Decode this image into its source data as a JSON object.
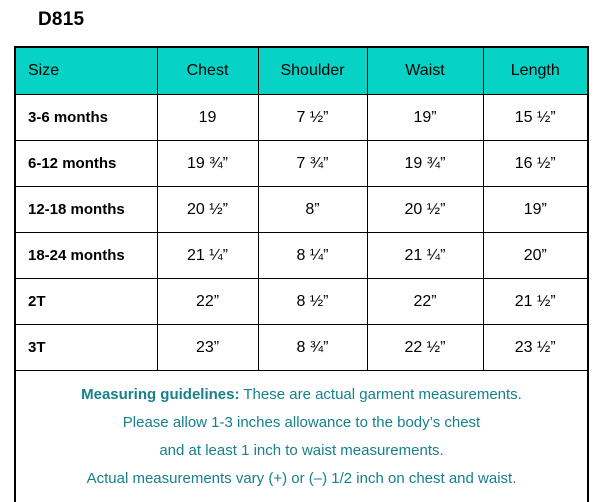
{
  "title": "D815",
  "colors": {
    "header_bg": "#06D2C6",
    "note_text": "#17808C",
    "border": "#000000",
    "text": "#000000"
  },
  "table": {
    "headers": [
      "Size",
      "Chest",
      "Shoulder",
      "Waist",
      "Length"
    ],
    "rows": [
      {
        "size": "3-6 months",
        "chest": "19",
        "shoulder": "7 ½”",
        "waist": "19”",
        "length": "15 ½”"
      },
      {
        "size": "6-12 months",
        "chest": "19 ¾”",
        "shoulder": "7 ¾”",
        "waist": "19 ¾”",
        "length": "16 ½”"
      },
      {
        "size": "12-18 months",
        "chest": "20 ½”",
        "shoulder": "8”",
        "waist": "20 ½”",
        "length": "19”"
      },
      {
        "size": "18-24 months",
        "chest": "21 ¼”",
        "shoulder": "8 ¼”",
        "waist": "21 ¼”",
        "length": "20”"
      },
      {
        "size": "2T",
        "chest": "22”",
        "shoulder": "8 ½”",
        "waist": "22”",
        "length": "21 ½”"
      },
      {
        "size": "3T",
        "chest": "23”",
        "shoulder": "8 ¾”",
        "waist": "22 ½”",
        "length": "23 ½”"
      }
    ]
  },
  "notes": {
    "line1_bold": "Measuring guidelines:",
    "line1_rest": " These are actual garment measurements.",
    "line2": "Please allow 1-3 inches allowance to the body’s chest",
    "line3": "and at least 1 inch to waist measurements.",
    "line4": "Actual measurements vary (+) or (–) 1/2 inch on chest and waist."
  },
  "chart_data": {
    "type": "table",
    "title": "D815",
    "columns": [
      "Size",
      "Chest",
      "Shoulder",
      "Waist",
      "Length"
    ],
    "rows": [
      [
        "3-6 months",
        "19",
        "7 ½”",
        "19”",
        "15 ½”"
      ],
      [
        "6-12 months",
        "19 ¾”",
        "7 ¾”",
        "19 ¾”",
        "16 ½”"
      ],
      [
        "12-18 months",
        "20 ½”",
        "8”",
        "20 ½”",
        "19”"
      ],
      [
        "18-24 months",
        "21 ¼”",
        "8 ¼”",
        "21 ¼”",
        "20”"
      ],
      [
        "2T",
        "22”",
        "8 ½”",
        "22”",
        "21 ½”"
      ],
      [
        "3T",
        "23”",
        "8 ¾”",
        "22 ½”",
        "23 ½”"
      ]
    ],
    "footnotes": [
      "Measuring guidelines: These are actual garment measurements.",
      "Please allow 1-3 inches allowance to the body’s chest",
      "and at least 1 inch to waist measurements.",
      "Actual measurements vary (+) or (–) 1/2 inch on chest and waist."
    ]
  }
}
